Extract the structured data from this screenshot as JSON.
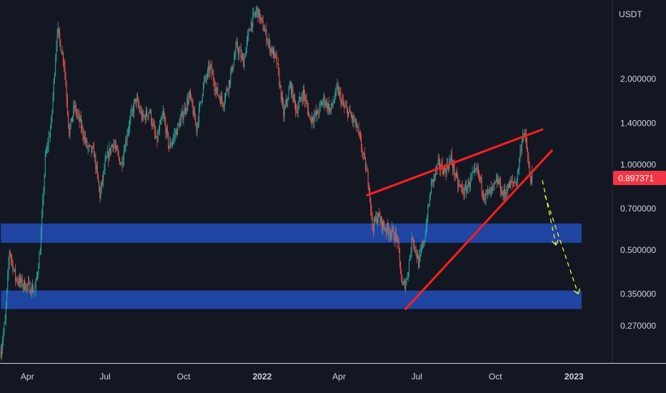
{
  "chart_data": {
    "type": "candlestick",
    "pair_unit": "USDT",
    "y_scale": "log",
    "ylim": [
      0.2,
      3.8
    ],
    "x_range": [
      "2021-02-28",
      "2023-02-15"
    ],
    "x_ticks": [
      {
        "label": "Apr",
        "date": "2021-04-01",
        "bold": false
      },
      {
        "label": "Jul",
        "date": "2021-07-01",
        "bold": false
      },
      {
        "label": "Oct",
        "date": "2021-10-01",
        "bold": false
      },
      {
        "label": "2022",
        "date": "2022-01-01",
        "bold": true
      },
      {
        "label": "Apr",
        "date": "2022-04-01",
        "bold": false
      },
      {
        "label": "Jul",
        "date": "2022-07-01",
        "bold": false
      },
      {
        "label": "Oct",
        "date": "2022-10-01",
        "bold": false
      },
      {
        "label": "2023",
        "date": "2023-01-01",
        "bold": true
      }
    ],
    "y_ticks": [
      {
        "label": "2.000000",
        "value": 2.0
      },
      {
        "label": "1.400000",
        "value": 1.4
      },
      {
        "label": "1.000000",
        "value": 1.0
      },
      {
        "label": "0.700000",
        "value": 0.7
      },
      {
        "label": "0.500000",
        "value": 0.5
      },
      {
        "label": "0.350000",
        "value": 0.35
      },
      {
        "label": "0.270000",
        "value": 0.27
      }
    ],
    "last_price": {
      "label": "0.897371",
      "value": 0.897371,
      "color": "#f23645"
    },
    "colors": {
      "up": "#26a69a",
      "down": "#ef5350",
      "zone": "#2149b0",
      "trendline": "#ff1f1f",
      "projection": "#e8f03c",
      "background": "#131722",
      "axis_text": "#d1d4dc"
    },
    "price_path": [
      [
        "2021-03-01",
        0.22
      ],
      [
        "2021-03-06",
        0.28
      ],
      [
        "2021-03-11",
        0.5
      ],
      [
        "2021-03-18",
        0.4
      ],
      [
        "2021-03-26",
        0.38
      ],
      [
        "2021-04-03",
        0.37
      ],
      [
        "2021-04-10",
        0.36
      ],
      [
        "2021-04-16",
        0.5
      ],
      [
        "2021-04-22",
        1.05
      ],
      [
        "2021-04-29",
        1.4
      ],
      [
        "2021-05-06",
        3.0
      ],
      [
        "2021-05-14",
        2.3
      ],
      [
        "2021-05-20",
        1.3
      ],
      [
        "2021-05-26",
        1.6
      ],
      [
        "2021-06-02",
        1.4
      ],
      [
        "2021-06-10",
        1.15
      ],
      [
        "2021-06-18",
        1.1
      ],
      [
        "2021-06-25",
        0.78
      ],
      [
        "2021-07-01",
        1.0
      ],
      [
        "2021-07-10",
        1.2
      ],
      [
        "2021-07-20",
        1.0
      ],
      [
        "2021-07-28",
        1.35
      ],
      [
        "2021-08-06",
        1.7
      ],
      [
        "2021-08-14",
        1.45
      ],
      [
        "2021-08-22",
        1.55
      ],
      [
        "2021-08-30",
        1.2
      ],
      [
        "2021-09-07",
        1.5
      ],
      [
        "2021-09-14",
        1.15
      ],
      [
        "2021-09-22",
        1.3
      ],
      [
        "2021-09-30",
        1.5
      ],
      [
        "2021-10-08",
        1.75
      ],
      [
        "2021-10-16",
        1.35
      ],
      [
        "2021-10-24",
        1.9
      ],
      [
        "2021-11-01",
        2.2
      ],
      [
        "2021-11-09",
        1.8
      ],
      [
        "2021-11-16",
        1.65
      ],
      [
        "2021-11-24",
        2.0
      ],
      [
        "2021-12-02",
        2.6
      ],
      [
        "2021-12-10",
        2.3
      ],
      [
        "2021-12-18",
        3.1
      ],
      [
        "2021-12-26",
        3.5
      ],
      [
        "2022-01-03",
        3.0
      ],
      [
        "2022-01-10",
        2.6
      ],
      [
        "2022-01-18",
        2.3
      ],
      [
        "2022-01-26",
        1.5
      ],
      [
        "2022-02-03",
        1.9
      ],
      [
        "2022-02-10",
        1.55
      ],
      [
        "2022-02-18",
        1.8
      ],
      [
        "2022-02-26",
        1.45
      ],
      [
        "2022-03-06",
        1.5
      ],
      [
        "2022-03-14",
        1.7
      ],
      [
        "2022-03-22",
        1.55
      ],
      [
        "2022-03-30",
        1.85
      ],
      [
        "2022-04-06",
        1.6
      ],
      [
        "2022-04-14",
        1.5
      ],
      [
        "2022-04-22",
        1.35
      ],
      [
        "2022-04-30",
        1.05
      ],
      [
        "2022-05-06",
        0.85
      ],
      [
        "2022-05-10",
        0.6
      ],
      [
        "2022-05-16",
        0.66
      ],
      [
        "2022-05-24",
        0.6
      ],
      [
        "2022-06-01",
        0.58
      ],
      [
        "2022-06-08",
        0.55
      ],
      [
        "2022-06-14",
        0.37
      ],
      [
        "2022-06-19",
        0.39
      ],
      [
        "2022-06-26",
        0.56
      ],
      [
        "2022-07-03",
        0.45
      ],
      [
        "2022-07-10",
        0.55
      ],
      [
        "2022-07-18",
        0.85
      ],
      [
        "2022-07-26",
        1.0
      ],
      [
        "2022-08-03",
        0.95
      ],
      [
        "2022-08-10",
        1.05
      ],
      [
        "2022-08-18",
        0.85
      ],
      [
        "2022-08-26",
        0.8
      ],
      [
        "2022-09-03",
        0.9
      ],
      [
        "2022-09-10",
        0.95
      ],
      [
        "2022-09-18",
        0.78
      ],
      [
        "2022-09-26",
        0.8
      ],
      [
        "2022-10-04",
        0.88
      ],
      [
        "2022-10-10",
        0.78
      ],
      [
        "2022-10-18",
        0.85
      ],
      [
        "2022-10-26",
        0.88
      ],
      [
        "2022-11-02",
        1.3
      ],
      [
        "2022-11-06",
        1.2
      ],
      [
        "2022-11-10",
        0.9
      ],
      [
        "2022-11-13",
        0.897
      ]
    ],
    "zones": [
      {
        "from": 0.53,
        "to": 0.62,
        "x_start": "2021-03-01",
        "x_end": "2023-01-10"
      },
      {
        "from": 0.31,
        "to": 0.36,
        "x_start": "2021-03-01",
        "x_end": "2023-01-10"
      }
    ],
    "trendlines": [
      {
        "from": [
          "2022-05-04",
          0.78
        ],
        "to": [
          "2022-11-25",
          1.33
        ]
      },
      {
        "from": [
          "2022-06-18",
          0.31
        ],
        "to": [
          "2022-12-06",
          1.12
        ]
      }
    ],
    "projections": [
      {
        "from": [
          "2022-11-25",
          0.88
        ],
        "to": [
          "2022-12-11",
          0.52
        ],
        "arrowhead": true
      },
      {
        "from": [
          "2022-11-28",
          0.78
        ],
        "to": [
          "2023-01-06",
          0.35
        ],
        "arrowhead": true
      }
    ]
  }
}
